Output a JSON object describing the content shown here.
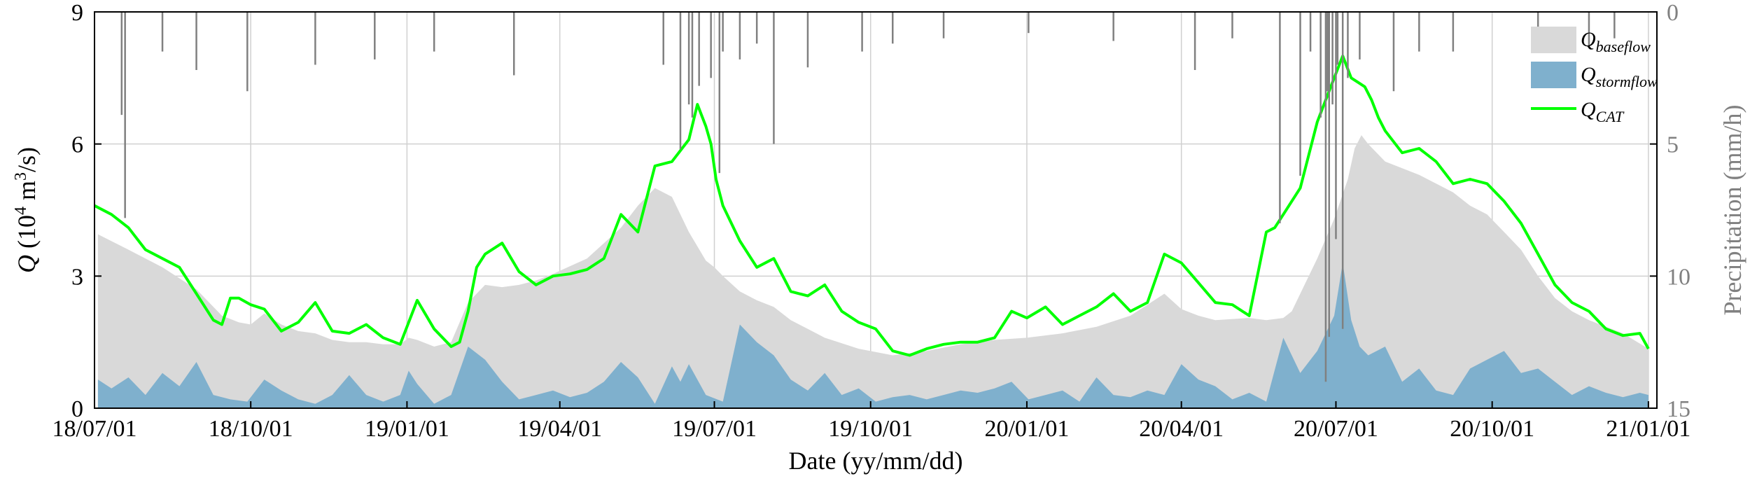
{
  "chart_data": {
    "type": "area",
    "xlabel": "Date (yy/mm/dd)",
    "ylabel_left": {
      "symbol": "Q",
      "text": " (10",
      "exp": "4",
      "text2": " m",
      "exp2": "3",
      "text3": "/s)"
    },
    "ylabel_right": "Precipitation (mm/h)",
    "x_range_days": [
      0,
      920
    ],
    "x_origin": "2018-07-01",
    "ylim_left": [
      0,
      9
    ],
    "ylim_right_reversed": [
      0,
      15
    ],
    "x_ticks": [
      {
        "day": 0,
        "label": "18/07/01"
      },
      {
        "day": 92,
        "label": "18/10/01"
      },
      {
        "day": 184,
        "label": "19/01/01"
      },
      {
        "day": 274,
        "label": "19/04/01"
      },
      {
        "day": 365,
        "label": "19/07/01"
      },
      {
        "day": 457,
        "label": "19/10/01"
      },
      {
        "day": 549,
        "label": "20/01/01"
      },
      {
        "day": 640,
        "label": "20/04/01"
      },
      {
        "day": 731,
        "label": "20/07/01"
      },
      {
        "day": 823,
        "label": "20/10/01"
      },
      {
        "day": 915,
        "label": "21/01/01"
      }
    ],
    "y_ticks_left": [
      "0",
      "3",
      "6",
      "9"
    ],
    "y_ticks_right": [
      "0",
      "5",
      "10",
      "15"
    ],
    "grid": true,
    "legend": {
      "position": "top-right",
      "items": [
        {
          "key": "baseflow",
          "symbol": "Q",
          "sub": "baseflow"
        },
        {
          "key": "stormflow",
          "symbol": "Q",
          "sub": "stormflow"
        },
        {
          "key": "cat",
          "symbol": "Q",
          "sub": "CAT"
        }
      ]
    },
    "colors": {
      "baseflow": "#d9d9d9",
      "stormflow": "#7fb0cd",
      "cat": "#00ff00",
      "precip": "#808080",
      "grid": "#d0d0d0"
    },
    "series": [
      {
        "name": "Qbaseflow",
        "key": "baseflow",
        "x": [
          2,
          20,
          40,
          60,
          75,
          85,
          92,
          100,
          110,
          120,
          130,
          140,
          150,
          160,
          170,
          180,
          185,
          190,
          200,
          210,
          220,
          230,
          240,
          250,
          260,
          270,
          290,
          310,
          320,
          330,
          340,
          350,
          360,
          365,
          370,
          380,
          390,
          400,
          410,
          420,
          430,
          450,
          470,
          490,
          510,
          530,
          549,
          570,
          590,
          610,
          620,
          630,
          640,
          650,
          660,
          680,
          690,
          700,
          705,
          710,
          720,
          730,
          738,
          742,
          746,
          750,
          760,
          780,
          800,
          810,
          820,
          830,
          840,
          850,
          860,
          870,
          880,
          900,
          915
        ],
        "y": [
          3.95,
          3.6,
          3.2,
          2.7,
          2.1,
          1.95,
          1.9,
          2.15,
          1.9,
          1.75,
          1.7,
          1.55,
          1.5,
          1.5,
          1.45,
          1.45,
          1.6,
          1.55,
          1.4,
          1.5,
          2.4,
          2.8,
          2.75,
          2.8,
          2.9,
          3.05,
          3.4,
          4.1,
          4.6,
          5.0,
          4.8,
          4.0,
          3.35,
          3.2,
          3.0,
          2.65,
          2.45,
          2.3,
          2.0,
          1.8,
          1.6,
          1.35,
          1.2,
          1.3,
          1.45,
          1.55,
          1.6,
          1.7,
          1.85,
          2.1,
          2.35,
          2.6,
          2.25,
          2.1,
          2.0,
          2.05,
          2.0,
          2.05,
          2.2,
          2.6,
          3.4,
          4.3,
          5.2,
          5.9,
          6.2,
          6.0,
          5.6,
          5.3,
          4.9,
          4.6,
          4.4,
          4.0,
          3.6,
          3.0,
          2.5,
          2.2,
          2.0,
          1.7,
          1.35
        ]
      },
      {
        "name": "Qstormflow",
        "key": "stormflow",
        "x": [
          2,
          10,
          20,
          30,
          40,
          50,
          60,
          70,
          80,
          90,
          100,
          110,
          120,
          130,
          140,
          150,
          160,
          170,
          180,
          185,
          190,
          200,
          210,
          220,
          230,
          240,
          250,
          260,
          270,
          280,
          290,
          300,
          310,
          320,
          330,
          340,
          345,
          350,
          360,
          370,
          380,
          390,
          400,
          410,
          420,
          430,
          440,
          450,
          460,
          470,
          480,
          490,
          500,
          510,
          520,
          530,
          540,
          550,
          560,
          570,
          580,
          590,
          600,
          610,
          620,
          630,
          640,
          650,
          660,
          670,
          680,
          690,
          700,
          710,
          720,
          730,
          735,
          740,
          745,
          750,
          760,
          770,
          780,
          790,
          800,
          810,
          820,
          830,
          840,
          850,
          860,
          870,
          880,
          890,
          900,
          910,
          915
        ],
        "y": [
          0.65,
          0.45,
          0.7,
          0.3,
          0.8,
          0.5,
          1.05,
          0.3,
          0.2,
          0.15,
          0.65,
          0.4,
          0.2,
          0.1,
          0.3,
          0.75,
          0.3,
          0.15,
          0.3,
          0.85,
          0.55,
          0.1,
          0.3,
          1.4,
          1.1,
          0.6,
          0.2,
          0.3,
          0.4,
          0.25,
          0.35,
          0.6,
          1.05,
          0.7,
          0.1,
          0.95,
          0.6,
          1.0,
          0.3,
          0.15,
          1.9,
          1.5,
          1.2,
          0.65,
          0.4,
          0.8,
          0.3,
          0.45,
          0.15,
          0.25,
          0.3,
          0.2,
          0.3,
          0.4,
          0.35,
          0.45,
          0.6,
          0.2,
          0.3,
          0.4,
          0.15,
          0.7,
          0.3,
          0.25,
          0.4,
          0.3,
          1.0,
          0.65,
          0.5,
          0.2,
          0.35,
          0.15,
          1.6,
          0.8,
          1.3,
          2.1,
          3.3,
          2.0,
          1.4,
          1.2,
          1.4,
          0.6,
          0.9,
          0.4,
          0.3,
          0.9,
          1.1,
          1.3,
          0.8,
          0.9,
          0.6,
          0.3,
          0.5,
          0.35,
          0.25,
          0.35,
          0.3
        ]
      },
      {
        "name": "QCAT",
        "key": "cat",
        "x": [
          0,
          10,
          20,
          30,
          40,
          50,
          60,
          70,
          75,
          80,
          85,
          92,
          100,
          110,
          120,
          130,
          140,
          150,
          160,
          170,
          180,
          190,
          200,
          210,
          215,
          220,
          225,
          230,
          240,
          250,
          260,
          270,
          280,
          290,
          300,
          310,
          320,
          330,
          340,
          350,
          355,
          360,
          363,
          366,
          370,
          380,
          390,
          400,
          410,
          420,
          430,
          440,
          450,
          460,
          470,
          480,
          490,
          500,
          510,
          520,
          530,
          540,
          549,
          560,
          570,
          580,
          590,
          600,
          610,
          620,
          630,
          640,
          650,
          660,
          670,
          680,
          690,
          695,
          700,
          710,
          720,
          730,
          735,
          740,
          744,
          748,
          752,
          756,
          760,
          770,
          780,
          790,
          800,
          810,
          820,
          830,
          840,
          850,
          860,
          870,
          880,
          890,
          900,
          910,
          915
        ],
        "y": [
          4.6,
          4.4,
          4.1,
          3.6,
          3.4,
          3.2,
          2.6,
          2.0,
          1.9,
          2.5,
          2.5,
          2.35,
          2.25,
          1.75,
          1.95,
          2.4,
          1.75,
          1.7,
          1.9,
          1.6,
          1.45,
          2.45,
          1.8,
          1.4,
          1.5,
          2.2,
          3.2,
          3.5,
          3.75,
          3.1,
          2.8,
          3.0,
          3.05,
          3.15,
          3.4,
          4.4,
          4.0,
          5.5,
          5.6,
          6.1,
          6.9,
          6.4,
          6.0,
          5.2,
          4.6,
          3.8,
          3.2,
          3.4,
          2.65,
          2.55,
          2.8,
          2.2,
          1.95,
          1.8,
          1.3,
          1.2,
          1.35,
          1.45,
          1.5,
          1.5,
          1.6,
          2.2,
          2.05,
          2.3,
          1.9,
          2.1,
          2.3,
          2.6,
          2.2,
          2.4,
          3.5,
          3.3,
          2.85,
          2.4,
          2.35,
          2.1,
          4.0,
          4.1,
          4.4,
          5.0,
          6.5,
          7.5,
          8.0,
          7.5,
          7.4,
          7.3,
          7.0,
          6.6,
          6.3,
          5.8,
          5.9,
          5.6,
          5.1,
          5.2,
          5.1,
          4.7,
          4.2,
          3.5,
          2.8,
          2.4,
          2.2,
          1.8,
          1.65,
          1.7,
          1.35
        ]
      }
    ],
    "precipitation_mm_per_h": {
      "name": "Precipitation",
      "key": "precip",
      "day": [
        16,
        18,
        40,
        60,
        90,
        130,
        165,
        200,
        247,
        335,
        345,
        350,
        352,
        356,
        363,
        368,
        370,
        380,
        390,
        400,
        420,
        452,
        470,
        500,
        550,
        600,
        648,
        670,
        698,
        710,
        716,
        722,
        725,
        726,
        727,
        729,
        731,
        732,
        735,
        738,
        745,
        765,
        780,
        800,
        850,
        880,
        895
      ],
      "mm_per_h": [
        3.9,
        7.8,
        1.5,
        2.2,
        3.0,
        2.0,
        1.8,
        1.5,
        2.4,
        2.0,
        5.2,
        3.5,
        4.0,
        2.8,
        2.5,
        6.1,
        1.5,
        1.8,
        1.2,
        5.0,
        2.1,
        1.5,
        1.2,
        1.0,
        0.8,
        1.1,
        2.2,
        1.0,
        8.0,
        6.2,
        1.5,
        4.0,
        14.0,
        3.0,
        12.3,
        3.5,
        8.6,
        2.0,
        12.0,
        2.5,
        1.8,
        3.0,
        1.5,
        1.5,
        1.2,
        1.3,
        1.0
      ]
    }
  }
}
